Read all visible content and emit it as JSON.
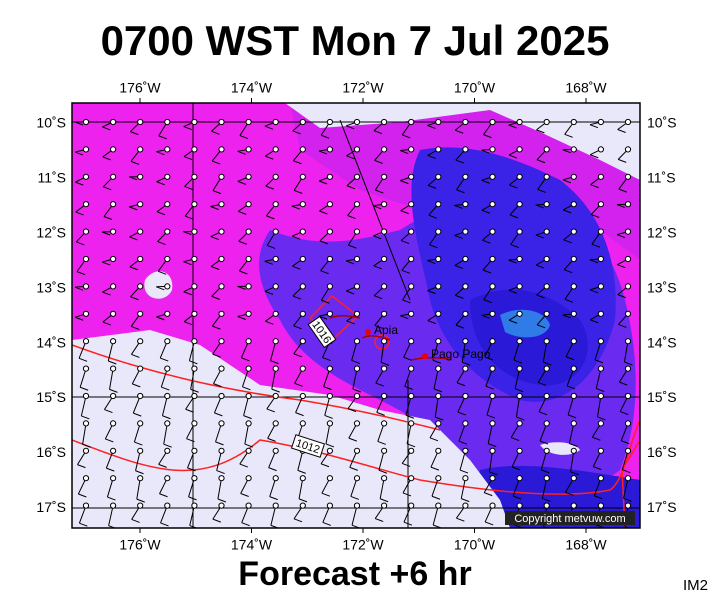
{
  "header": {
    "title": "0700 WST Mon 7 Jul 2025"
  },
  "map": {
    "lon_labels": [
      "176˚W",
      "174˚W",
      "172˚W",
      "170˚W",
      "168˚W"
    ],
    "lat_labels": [
      "10˚S",
      "11˚S",
      "12˚S",
      "13˚S",
      "14˚S",
      "15˚S",
      "16˚S",
      "17˚S"
    ],
    "places": [
      "Apia",
      "Pago Pago"
    ],
    "isobar_labels": [
      "1016",
      "1012"
    ],
    "copyright": "Copyright metvuw.com"
  },
  "footer": {
    "subtitle": "Forecast +6 hr",
    "code": "IM2"
  }
}
